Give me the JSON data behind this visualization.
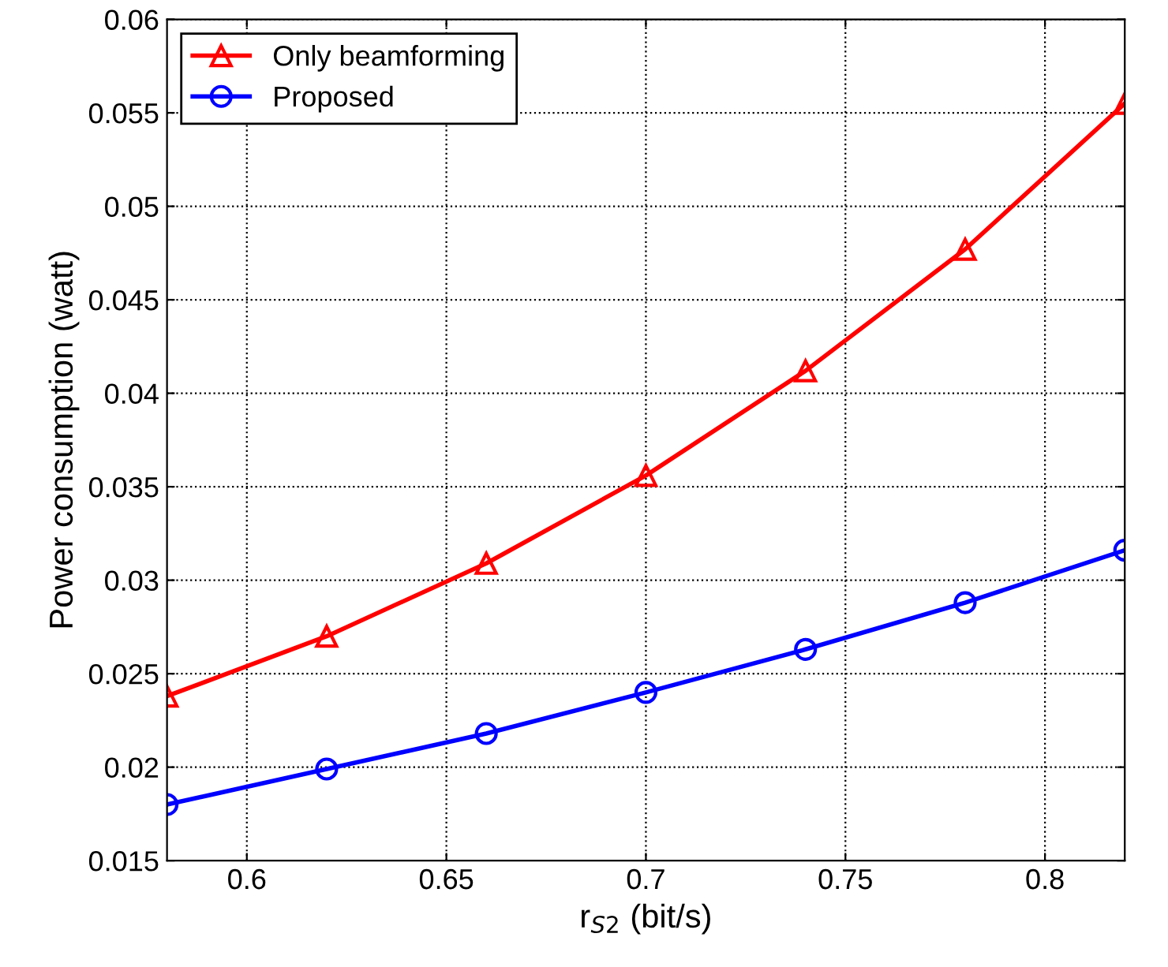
{
  "chart_data": {
    "type": "line",
    "xlabel": "r$_{S2}$ (bit/s)",
    "ylabel": "Power consumption (watt)",
    "x": [
      0.58,
      0.62,
      0.66,
      0.7,
      0.74,
      0.78,
      0.82
    ],
    "series": [
      {
        "name": "Only beamforming",
        "color": "#ff0000",
        "marker": "triangle",
        "values": [
          0.0238,
          0.027,
          0.0309,
          0.0356,
          0.0412,
          0.0477,
          0.0555
        ]
      },
      {
        "name": "Proposed",
        "color": "#0000ff",
        "marker": "circle",
        "values": [
          0.018,
          0.0199,
          0.0218,
          0.024,
          0.0263,
          0.0288,
          0.0316
        ]
      }
    ],
    "xlim": [
      0.58,
      0.82
    ],
    "xticks": [
      0.6,
      0.65,
      0.7,
      0.75,
      0.8
    ],
    "ylim": [
      0.015,
      0.06
    ],
    "yticks": [
      0.015,
      0.02,
      0.025,
      0.03,
      0.035,
      0.04,
      0.045,
      0.05,
      0.055,
      0.06
    ],
    "grid": true,
    "legend": "top left",
    "line_style": "solid"
  }
}
